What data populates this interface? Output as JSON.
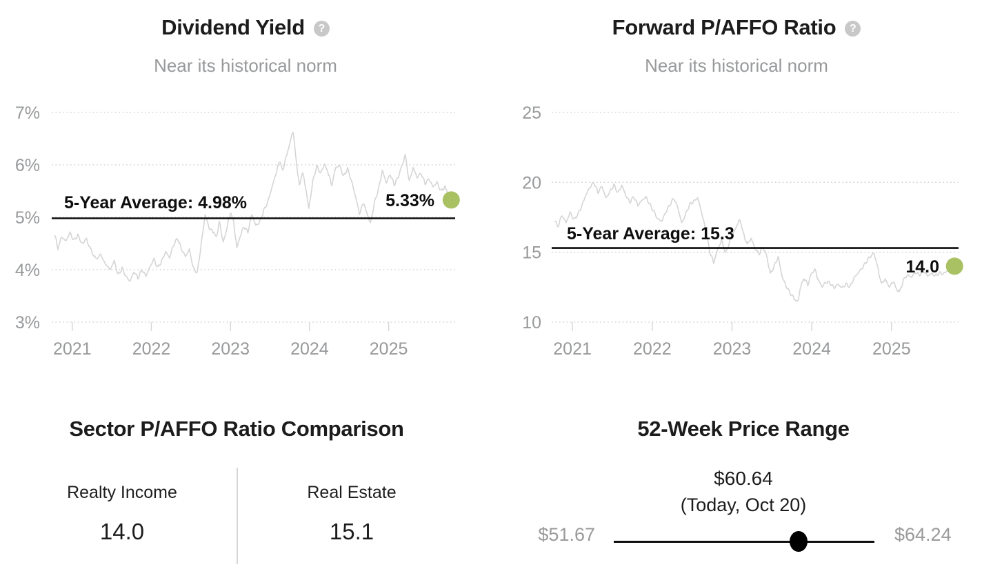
{
  "ui": {
    "help_glyph": "?"
  },
  "colors": {
    "accent_dot": "#a9c162",
    "series_line": "#d5d5d5",
    "grid_line": "#cfcfcf",
    "axis_text": "#97999b",
    "average_line": "#0c0c0c",
    "title_text": "#1c1c1c",
    "subtitle_text": "#97999b",
    "help_icon_bg": "#c8c8c8"
  },
  "sector_comparison": {
    "title": "Sector P/AFFO Ratio Comparison",
    "columns": [
      {
        "label": "Realty Income",
        "value": "14.0"
      },
      {
        "label": "Real Estate",
        "value": "15.1"
      }
    ]
  },
  "price_range": {
    "title": "52-Week Price Range",
    "current_price": "$60.64",
    "current_date": "(Today, Oct 20)",
    "low_label": "$51.67",
    "high_label": "$64.24",
    "low_value": 51.67,
    "high_value": 64.24,
    "current_value": 60.64
  },
  "chart_data": [
    {
      "id": "dividend-yield",
      "type": "line",
      "title": "Dividend Yield",
      "subtitle": "Near its historical norm",
      "xlabel": "",
      "ylabel": "",
      "legend": "none",
      "grid": "dotted-horizontal",
      "x_range": [
        2020.74,
        2025.84
      ],
      "ylim": [
        3,
        7
      ],
      "y_ticks": [
        {
          "label": "7%",
          "value": 7
        },
        {
          "label": "6%",
          "value": 6
        },
        {
          "label": "5%",
          "value": 5
        },
        {
          "label": "4%",
          "value": 4
        },
        {
          "label": "3%",
          "value": 3
        }
      ],
      "x_ticks": [
        {
          "label": "2021",
          "value": 2021
        },
        {
          "label": "2022",
          "value": 2022
        },
        {
          "label": "2023",
          "value": 2023
        },
        {
          "label": "2024",
          "value": 2024
        },
        {
          "label": "2025",
          "value": 2025
        }
      ],
      "average": {
        "label": "5-Year Average: 4.98%",
        "value": 4.98
      },
      "current": {
        "label": "5.33%",
        "value": 5.33
      },
      "points": [
        [
          2020.78,
          4.65
        ],
        [
          2020.82,
          4.38
        ],
        [
          2020.86,
          4.62
        ],
        [
          2020.92,
          4.55
        ],
        [
          2020.97,
          4.72
        ],
        [
          2021.02,
          4.58
        ],
        [
          2021.07,
          4.68
        ],
        [
          2021.12,
          4.52
        ],
        [
          2021.18,
          4.6
        ],
        [
          2021.24,
          4.38
        ],
        [
          2021.3,
          4.22
        ],
        [
          2021.36,
          4.3
        ],
        [
          2021.42,
          4.1
        ],
        [
          2021.48,
          4.0
        ],
        [
          2021.53,
          4.18
        ],
        [
          2021.58,
          3.92
        ],
        [
          2021.63,
          4.05
        ],
        [
          2021.68,
          3.88
        ],
        [
          2021.73,
          3.78
        ],
        [
          2021.78,
          3.95
        ],
        [
          2021.83,
          3.82
        ],
        [
          2021.88,
          3.98
        ],
        [
          2021.93,
          3.87
        ],
        [
          2021.98,
          4.05
        ],
        [
          2022.03,
          4.22
        ],
        [
          2022.08,
          4.06
        ],
        [
          2022.13,
          4.18
        ],
        [
          2022.18,
          4.35
        ],
        [
          2022.23,
          4.22
        ],
        [
          2022.28,
          4.45
        ],
        [
          2022.33,
          4.58
        ],
        [
          2022.38,
          4.38
        ],
        [
          2022.43,
          4.25
        ],
        [
          2022.48,
          4.4
        ],
        [
          2022.53,
          4.05
        ],
        [
          2022.58,
          3.96
        ],
        [
          2022.63,
          4.5
        ],
        [
          2022.68,
          5.05
        ],
        [
          2022.73,
          4.78
        ],
        [
          2022.78,
          4.7
        ],
        [
          2022.82,
          4.63
        ],
        [
          2022.86,
          4.92
        ],
        [
          2022.91,
          4.53
        ],
        [
          2022.96,
          4.82
        ],
        [
          2023.0,
          5.08
        ],
        [
          2023.04,
          4.93
        ],
        [
          2023.08,
          4.42
        ],
        [
          2023.12,
          4.62
        ],
        [
          2023.17,
          4.8
        ],
        [
          2023.22,
          4.7
        ],
        [
          2023.27,
          5.05
        ],
        [
          2023.32,
          4.85
        ],
        [
          2023.37,
          4.93
        ],
        [
          2023.42,
          5.15
        ],
        [
          2023.47,
          5.3
        ],
        [
          2023.52,
          5.55
        ],
        [
          2023.57,
          5.8
        ],
        [
          2023.62,
          6.05
        ],
        [
          2023.66,
          5.9
        ],
        [
          2023.7,
          6.15
        ],
        [
          2023.74,
          6.35
        ],
        [
          2023.79,
          6.62
        ],
        [
          2023.83,
          6.1
        ],
        [
          2023.87,
          5.62
        ],
        [
          2023.91,
          5.85
        ],
        [
          2023.95,
          5.55
        ],
        [
          2023.99,
          5.17
        ],
        [
          2024.04,
          5.7
        ],
        [
          2024.09,
          6.0
        ],
        [
          2024.14,
          5.85
        ],
        [
          2024.19,
          6.02
        ],
        [
          2024.24,
          5.8
        ],
        [
          2024.28,
          5.6
        ],
        [
          2024.33,
          5.95
        ],
        [
          2024.38,
          6.0
        ],
        [
          2024.43,
          5.8
        ],
        [
          2024.48,
          5.95
        ],
        [
          2024.53,
          5.7
        ],
        [
          2024.58,
          5.4
        ],
        [
          2024.63,
          5.05
        ],
        [
          2024.68,
          5.25
        ],
        [
          2024.72,
          5.1
        ],
        [
          2024.77,
          4.9
        ],
        [
          2024.82,
          5.3
        ],
        [
          2024.87,
          5.55
        ],
        [
          2024.92,
          5.9
        ],
        [
          2024.97,
          5.65
        ],
        [
          2025.02,
          5.8
        ],
        [
          2025.07,
          5.6
        ],
        [
          2025.12,
          5.75
        ],
        [
          2025.17,
          6.0
        ],
        [
          2025.21,
          6.2
        ],
        [
          2025.26,
          5.7
        ],
        [
          2025.31,
          5.95
        ],
        [
          2025.36,
          5.75
        ],
        [
          2025.41,
          5.82
        ],
        [
          2025.46,
          5.62
        ],
        [
          2025.51,
          5.72
        ],
        [
          2025.56,
          5.58
        ],
        [
          2025.61,
          5.68
        ],
        [
          2025.66,
          5.52
        ],
        [
          2025.71,
          5.6
        ],
        [
          2025.75,
          5.45
        ],
        [
          2025.79,
          5.33
        ]
      ]
    },
    {
      "id": "forward-paffo",
      "type": "line",
      "title": "Forward P/AFFO Ratio",
      "subtitle": "Near its historical norm",
      "xlabel": "",
      "ylabel": "",
      "legend": "none",
      "grid": "dotted-horizontal",
      "x_range": [
        2020.74,
        2025.84
      ],
      "ylim": [
        10,
        25
      ],
      "y_ticks": [
        {
          "label": "25",
          "value": 25
        },
        {
          "label": "20",
          "value": 20
        },
        {
          "label": "15",
          "value": 15
        },
        {
          "label": "10",
          "value": 10
        }
      ],
      "x_ticks": [
        {
          "label": "2021",
          "value": 2021
        },
        {
          "label": "2022",
          "value": 2022
        },
        {
          "label": "2023",
          "value": 2023
        },
        {
          "label": "2024",
          "value": 2024
        },
        {
          "label": "2025",
          "value": 2025
        }
      ],
      "average": {
        "label": "5-Year Average: 15.3",
        "value": 15.3
      },
      "current": {
        "label": "14.0",
        "value": 14.0
      },
      "points": [
        [
          2020.78,
          17.2
        ],
        [
          2020.82,
          16.8
        ],
        [
          2020.87,
          17.6
        ],
        [
          2020.92,
          17.1
        ],
        [
          2020.97,
          17.9
        ],
        [
          2021.02,
          17.4
        ],
        [
          2021.07,
          17.8
        ],
        [
          2021.12,
          18.4
        ],
        [
          2021.17,
          19.1
        ],
        [
          2021.22,
          19.6
        ],
        [
          2021.27,
          19.9
        ],
        [
          2021.32,
          19.2
        ],
        [
          2021.37,
          19.7
        ],
        [
          2021.42,
          18.9
        ],
        [
          2021.47,
          19.4
        ],
        [
          2021.52,
          19.9
        ],
        [
          2021.57,
          19.3
        ],
        [
          2021.62,
          19.8
        ],
        [
          2021.67,
          19.0
        ],
        [
          2021.72,
          18.5
        ],
        [
          2021.77,
          18.9
        ],
        [
          2021.82,
          18.3
        ],
        [
          2021.87,
          18.7
        ],
        [
          2021.92,
          19.0
        ],
        [
          2021.97,
          18.5
        ],
        [
          2022.02,
          18.0
        ],
        [
          2022.07,
          17.4
        ],
        [
          2022.12,
          17.2
        ],
        [
          2022.17,
          17.8
        ],
        [
          2022.22,
          18.3
        ],
        [
          2022.27,
          18.8
        ],
        [
          2022.32,
          18.2
        ],
        [
          2022.37,
          17.1
        ],
        [
          2022.42,
          17.8
        ],
        [
          2022.47,
          18.5
        ],
        [
          2022.52,
          18.7
        ],
        [
          2022.57,
          18.9
        ],
        [
          2022.62,
          17.8
        ],
        [
          2022.67,
          16.5
        ],
        [
          2022.72,
          15.0
        ],
        [
          2022.77,
          14.2
        ],
        [
          2022.82,
          15.2
        ],
        [
          2022.87,
          15.9
        ],
        [
          2022.92,
          15.0
        ],
        [
          2022.97,
          15.8
        ],
        [
          2023.02,
          16.4
        ],
        [
          2023.07,
          17.0
        ],
        [
          2023.1,
          17.3
        ],
        [
          2023.15,
          16.3
        ],
        [
          2023.19,
          15.6
        ],
        [
          2023.24,
          16.0
        ],
        [
          2023.29,
          15.2
        ],
        [
          2023.34,
          14.8
        ],
        [
          2023.39,
          15.3
        ],
        [
          2023.44,
          14.6
        ],
        [
          2023.48,
          13.5
        ],
        [
          2023.53,
          14.1
        ],
        [
          2023.58,
          14.7
        ],
        [
          2023.63,
          13.2
        ],
        [
          2023.68,
          12.5
        ],
        [
          2023.73,
          12.0
        ],
        [
          2023.78,
          11.6
        ],
        [
          2023.82,
          11.5
        ],
        [
          2023.86,
          12.5
        ],
        [
          2023.9,
          13.1
        ],
        [
          2023.95,
          12.6
        ],
        [
          2024.0,
          13.5
        ],
        [
          2024.04,
          13.8
        ],
        [
          2024.09,
          13.0
        ],
        [
          2024.13,
          12.5
        ],
        [
          2024.18,
          12.8
        ],
        [
          2024.23,
          12.7
        ],
        [
          2024.28,
          12.4
        ],
        [
          2024.33,
          12.7
        ],
        [
          2024.38,
          12.5
        ],
        [
          2024.43,
          12.8
        ],
        [
          2024.48,
          12.6
        ],
        [
          2024.53,
          13.2
        ],
        [
          2024.58,
          13.5
        ],
        [
          2024.63,
          13.8
        ],
        [
          2024.68,
          14.2
        ],
        [
          2024.73,
          14.6
        ],
        [
          2024.78,
          14.9
        ],
        [
          2024.83,
          13.9
        ],
        [
          2024.87,
          12.8
        ],
        [
          2024.92,
          13.1
        ],
        [
          2024.97,
          12.5
        ],
        [
          2025.02,
          12.8
        ],
        [
          2025.06,
          12.4
        ],
        [
          2025.1,
          12.2
        ],
        [
          2025.15,
          13.1
        ],
        [
          2025.2,
          13.4
        ],
        [
          2025.25,
          13.2
        ],
        [
          2025.3,
          13.5
        ],
        [
          2025.35,
          13.3
        ],
        [
          2025.4,
          13.6
        ],
        [
          2025.45,
          13.3
        ],
        [
          2025.5,
          13.5
        ],
        [
          2025.55,
          13.4
        ],
        [
          2025.6,
          13.6
        ],
        [
          2025.65,
          13.5
        ],
        [
          2025.7,
          13.7
        ],
        [
          2025.74,
          13.8
        ],
        [
          2025.79,
          14.0
        ]
      ]
    }
  ]
}
